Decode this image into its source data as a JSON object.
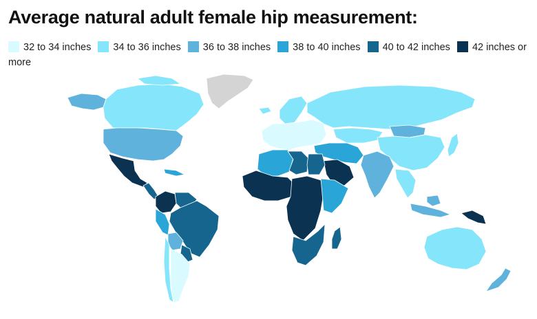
{
  "title": "Average natural adult female hip measurement:",
  "legend": [
    {
      "label": "32 to 34 inches",
      "color": "#d9fbff"
    },
    {
      "label": "34 to 36 inches",
      "color": "#85e6fb"
    },
    {
      "label": "36 to 38 inches",
      "color": "#5fb2dc"
    },
    {
      "label": "38 to 40 inches",
      "color": "#29a5d8"
    },
    {
      "label": "40 to 42 inches",
      "color": "#16658f"
    },
    {
      "label": "42 inches or more",
      "color": "#0b3351"
    }
  ],
  "no_data_color": "#d4d4d4",
  "regions": [
    {
      "name": "Greenland",
      "category": "no-data"
    },
    {
      "name": "Canada",
      "category": "34-36"
    },
    {
      "name": "Alaska",
      "category": "36-38"
    },
    {
      "name": "United States",
      "category": "36-38"
    },
    {
      "name": "Mexico",
      "category": "42+"
    },
    {
      "name": "Central America",
      "category": "40-42"
    },
    {
      "name": "Caribbean",
      "category": "38-40"
    },
    {
      "name": "Colombia",
      "category": "42+"
    },
    {
      "name": "Venezuela",
      "category": "40-42"
    },
    {
      "name": "Brazil",
      "category": "40-42"
    },
    {
      "name": "Peru",
      "category": "38-40"
    },
    {
      "name": "Bolivia",
      "category": "36-38"
    },
    {
      "name": "Paraguay",
      "category": "40-42"
    },
    {
      "name": "Argentina",
      "category": "32-34"
    },
    {
      "name": "Chile",
      "category": "34-36"
    },
    {
      "name": "Iceland",
      "category": "34-36"
    },
    {
      "name": "Europe",
      "category": "32-34"
    },
    {
      "name": "Scandinavia",
      "category": "34-36"
    },
    {
      "name": "Russia",
      "category": "34-36"
    },
    {
      "name": "Kazakhstan",
      "category": "34-36"
    },
    {
      "name": "Mongolia",
      "category": "36-38"
    },
    {
      "name": "China",
      "category": "34-36"
    },
    {
      "name": "Japan",
      "category": "34-36"
    },
    {
      "name": "Middle East",
      "category": "38-40"
    },
    {
      "name": "Saudi Arabia",
      "category": "42+"
    },
    {
      "name": "India",
      "category": "36-38"
    },
    {
      "name": "Southeast Asia",
      "category": "34-36"
    },
    {
      "name": "Indonesia",
      "category": "36-38"
    },
    {
      "name": "Papua New Guinea",
      "category": "42+"
    },
    {
      "name": "Australia",
      "category": "34-36"
    },
    {
      "name": "New Zealand",
      "category": "36-38"
    },
    {
      "name": "North Africa",
      "category": "38-40"
    },
    {
      "name": "Libya",
      "category": "40-42"
    },
    {
      "name": "Egypt",
      "category": "40-42"
    },
    {
      "name": "West Africa",
      "category": "42+"
    },
    {
      "name": "Central Africa",
      "category": "42+"
    },
    {
      "name": "East Africa",
      "category": "38-40"
    },
    {
      "name": "Southern Africa",
      "category": "40-42"
    },
    {
      "name": "Madagascar",
      "category": "40-42"
    }
  ]
}
